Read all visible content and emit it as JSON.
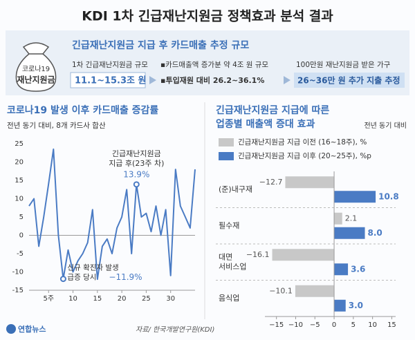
{
  "header": {
    "title": "KDI 1차 긴급재난지원금 정책효과 분석 결과"
  },
  "summary": {
    "badge_lines": [
      "코로나19",
      "재난지원금"
    ],
    "heading": "긴급재난지원금 지급 후 카드매출 추정 규모",
    "items": [
      {
        "label": "1차 긴급재난지원금 규모",
        "value": "11.1~15.3조 원"
      },
      {
        "label": "▪카드매출액 증가분 약 4조 원 규모",
        "value": "▪투입재원 대비 26.2~36.1%"
      },
      {
        "label": "100만원 재난지원금 받은 가구",
        "value": "26~36만 원 추가 지출 추정"
      }
    ]
  },
  "chart_data": [
    {
      "type": "line",
      "title": "코로나19 발생 이후 카드매출 증감률",
      "subtitle": "전년 동기 대비, 8개 카드사 합산",
      "x": [
        1,
        2,
        3,
        4,
        5,
        6,
        7,
        8,
        9,
        10,
        11,
        12,
        13,
        14,
        15,
        16,
        17,
        18,
        19,
        20,
        21,
        22,
        23,
        24,
        25,
        26,
        27,
        28,
        29,
        30,
        31,
        32,
        33,
        34,
        35
      ],
      "series": [
        {
          "color": "#4a7bc4",
          "values": [
            8,
            10,
            -3,
            5,
            14,
            23.5,
            0,
            -11.9,
            -4,
            -10,
            -7,
            -5,
            -2,
            7,
            -12,
            -3,
            -1,
            -5,
            2,
            5,
            12.5,
            -5,
            13.9,
            5,
            6,
            1,
            8,
            0,
            7,
            -11,
            18,
            8,
            5,
            2,
            18
          ]
        }
      ],
      "xlim": [
        1,
        35
      ],
      "xticks": [
        {
          "value": 5,
          "label": "5주"
        },
        10,
        15,
        20,
        25,
        30
      ],
      "ylim": [
        -15,
        25
      ],
      "yticks": [
        -15,
        -10,
        -5,
        0,
        5,
        10,
        15,
        20,
        25
      ],
      "annotations": [
        {
          "lines": [
            "긴급재난지원금",
            "지급 후(23주 차)"
          ],
          "value": 13.9,
          "label": "13.9%"
        },
        {
          "lines": [
            "신규 확진자 발생",
            "급증 당시"
          ],
          "value": -11.9,
          "label": "−11.9%"
        }
      ]
    },
    {
      "type": "bar",
      "orientation": "horizontal",
      "title_lines": [
        "긴급재난지원금 지급에 따른",
        "업종별 매출액 증대 효과"
      ],
      "subtitle": "전년 동기 대비",
      "categories": [
        "(준)내구재",
        "필수재",
        "대면 서비스업",
        "음식업"
      ],
      "series": [
        {
          "name": "긴급재난지원금 지급 이전 (16~18주), %",
          "color": "#c8c8c8",
          "values": [
            -12.7,
            2.1,
            -16.1,
            -10.1
          ],
          "value_labels": [
            "−12.7",
            "2.1",
            "−16.1",
            "−10.1"
          ]
        },
        {
          "name": "긴급재난지원금 지급 이후 (20~25주), %p",
          "color": "#4a7bc4",
          "values": [
            10.8,
            8.0,
            3.6,
            3.0
          ],
          "value_labels": [
            "10.8",
            "8.0",
            "3.6",
            "3.0"
          ]
        }
      ],
      "xlim": [
        -18,
        16
      ],
      "xticks": [
        {
          "value": -15,
          "label": "−15"
        },
        {
          "value": -10,
          "label": "−10"
        },
        {
          "value": -5,
          "label": "−5"
        },
        0,
        5,
        10,
        15
      ]
    }
  ],
  "footer": {
    "source": "자료/ 한국개발연구원(KDI)",
    "logo": "연합뉴스"
  }
}
